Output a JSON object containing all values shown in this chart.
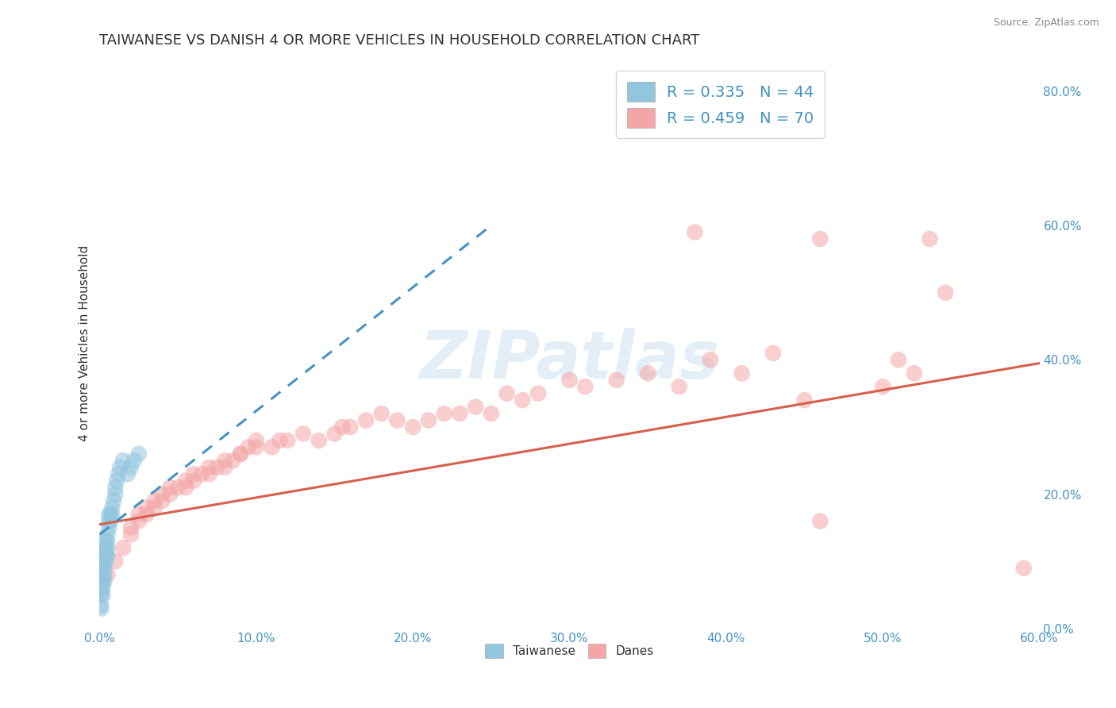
{
  "title": "TAIWANESE VS DANISH 4 OR MORE VEHICLES IN HOUSEHOLD CORRELATION CHART",
  "source": "Source: ZipAtlas.com",
  "ylabel": "4 or more Vehicles in Household",
  "x_label_taiwanese": "Taiwanese",
  "x_label_danes": "Danes",
  "xlim": [
    0.0,
    0.6
  ],
  "ylim": [
    0.0,
    0.85
  ],
  "xticks": [
    0.0,
    0.1,
    0.2,
    0.3,
    0.4,
    0.5,
    0.6
  ],
  "yticks": [
    0.0,
    0.2,
    0.4,
    0.6,
    0.8
  ],
  "legend_r_taiwanese": "R = 0.335",
  "legend_n_taiwanese": "N = 44",
  "legend_r_danes": "R = 0.459",
  "legend_n_danes": "N = 70",
  "taiwanese_color": "#92c5de",
  "danes_color": "#f4a6a6",
  "taiwanese_line_color": "#4393c3",
  "danes_line_color": "#d6604d",
  "background_color": "#ffffff",
  "grid_color": "#cccccc",
  "watermark_color": "#c8dff0",
  "title_color": "#333333",
  "tick_color": "#4393c3",
  "source_color": "#888888",
  "taiwanese_x": [
    0.001,
    0.001,
    0.001,
    0.001,
    0.001,
    0.002,
    0.002,
    0.002,
    0.002,
    0.002,
    0.002,
    0.002,
    0.003,
    0.003,
    0.003,
    0.003,
    0.003,
    0.003,
    0.004,
    0.004,
    0.004,
    0.004,
    0.005,
    0.005,
    0.005,
    0.005,
    0.006,
    0.006,
    0.006,
    0.007,
    0.007,
    0.008,
    0.008,
    0.009,
    0.01,
    0.01,
    0.011,
    0.012,
    0.013,
    0.015,
    0.018,
    0.02,
    0.022,
    0.025
  ],
  "taiwanese_y": [
    0.03,
    0.035,
    0.05,
    0.06,
    0.07,
    0.05,
    0.06,
    0.07,
    0.08,
    0.09,
    0.1,
    0.11,
    0.07,
    0.08,
    0.09,
    0.1,
    0.11,
    0.12,
    0.1,
    0.11,
    0.12,
    0.13,
    0.11,
    0.12,
    0.13,
    0.14,
    0.15,
    0.16,
    0.17,
    0.16,
    0.17,
    0.17,
    0.18,
    0.19,
    0.2,
    0.21,
    0.22,
    0.23,
    0.24,
    0.25,
    0.23,
    0.24,
    0.25,
    0.26
  ],
  "taiwanese_trendline_x": [
    0.0,
    0.25
  ],
  "taiwanese_trendline_y": [
    0.14,
    0.6
  ],
  "danes_x": [
    0.005,
    0.01,
    0.015,
    0.02,
    0.02,
    0.025,
    0.025,
    0.03,
    0.03,
    0.035,
    0.035,
    0.04,
    0.04,
    0.045,
    0.045,
    0.05,
    0.055,
    0.055,
    0.06,
    0.06,
    0.065,
    0.07,
    0.07,
    0.075,
    0.08,
    0.08,
    0.085,
    0.09,
    0.09,
    0.095,
    0.1,
    0.1,
    0.11,
    0.115,
    0.12,
    0.13,
    0.14,
    0.15,
    0.155,
    0.16,
    0.17,
    0.18,
    0.19,
    0.2,
    0.21,
    0.22,
    0.23,
    0.24,
    0.25,
    0.26,
    0.27,
    0.28,
    0.3,
    0.31,
    0.33,
    0.35,
    0.37,
    0.39,
    0.41,
    0.43,
    0.45,
    0.46,
    0.5,
    0.51,
    0.52,
    0.53,
    0.54,
    0.46,
    0.38,
    0.59
  ],
  "danes_y": [
    0.08,
    0.1,
    0.12,
    0.14,
    0.15,
    0.16,
    0.17,
    0.17,
    0.18,
    0.18,
    0.19,
    0.19,
    0.2,
    0.2,
    0.21,
    0.21,
    0.21,
    0.22,
    0.22,
    0.23,
    0.23,
    0.23,
    0.24,
    0.24,
    0.24,
    0.25,
    0.25,
    0.26,
    0.26,
    0.27,
    0.27,
    0.28,
    0.27,
    0.28,
    0.28,
    0.29,
    0.28,
    0.29,
    0.3,
    0.3,
    0.31,
    0.32,
    0.31,
    0.3,
    0.31,
    0.32,
    0.32,
    0.33,
    0.32,
    0.35,
    0.34,
    0.35,
    0.37,
    0.36,
    0.37,
    0.38,
    0.36,
    0.4,
    0.38,
    0.41,
    0.34,
    0.58,
    0.36,
    0.4,
    0.38,
    0.58,
    0.5,
    0.16,
    0.59,
    0.09
  ],
  "danes_trendline_x": [
    0.0,
    0.6
  ],
  "danes_trendline_y": [
    0.155,
    0.395
  ],
  "title_fontsize": 13,
  "axis_fontsize": 11,
  "tick_fontsize": 11,
  "legend_fontsize": 14
}
